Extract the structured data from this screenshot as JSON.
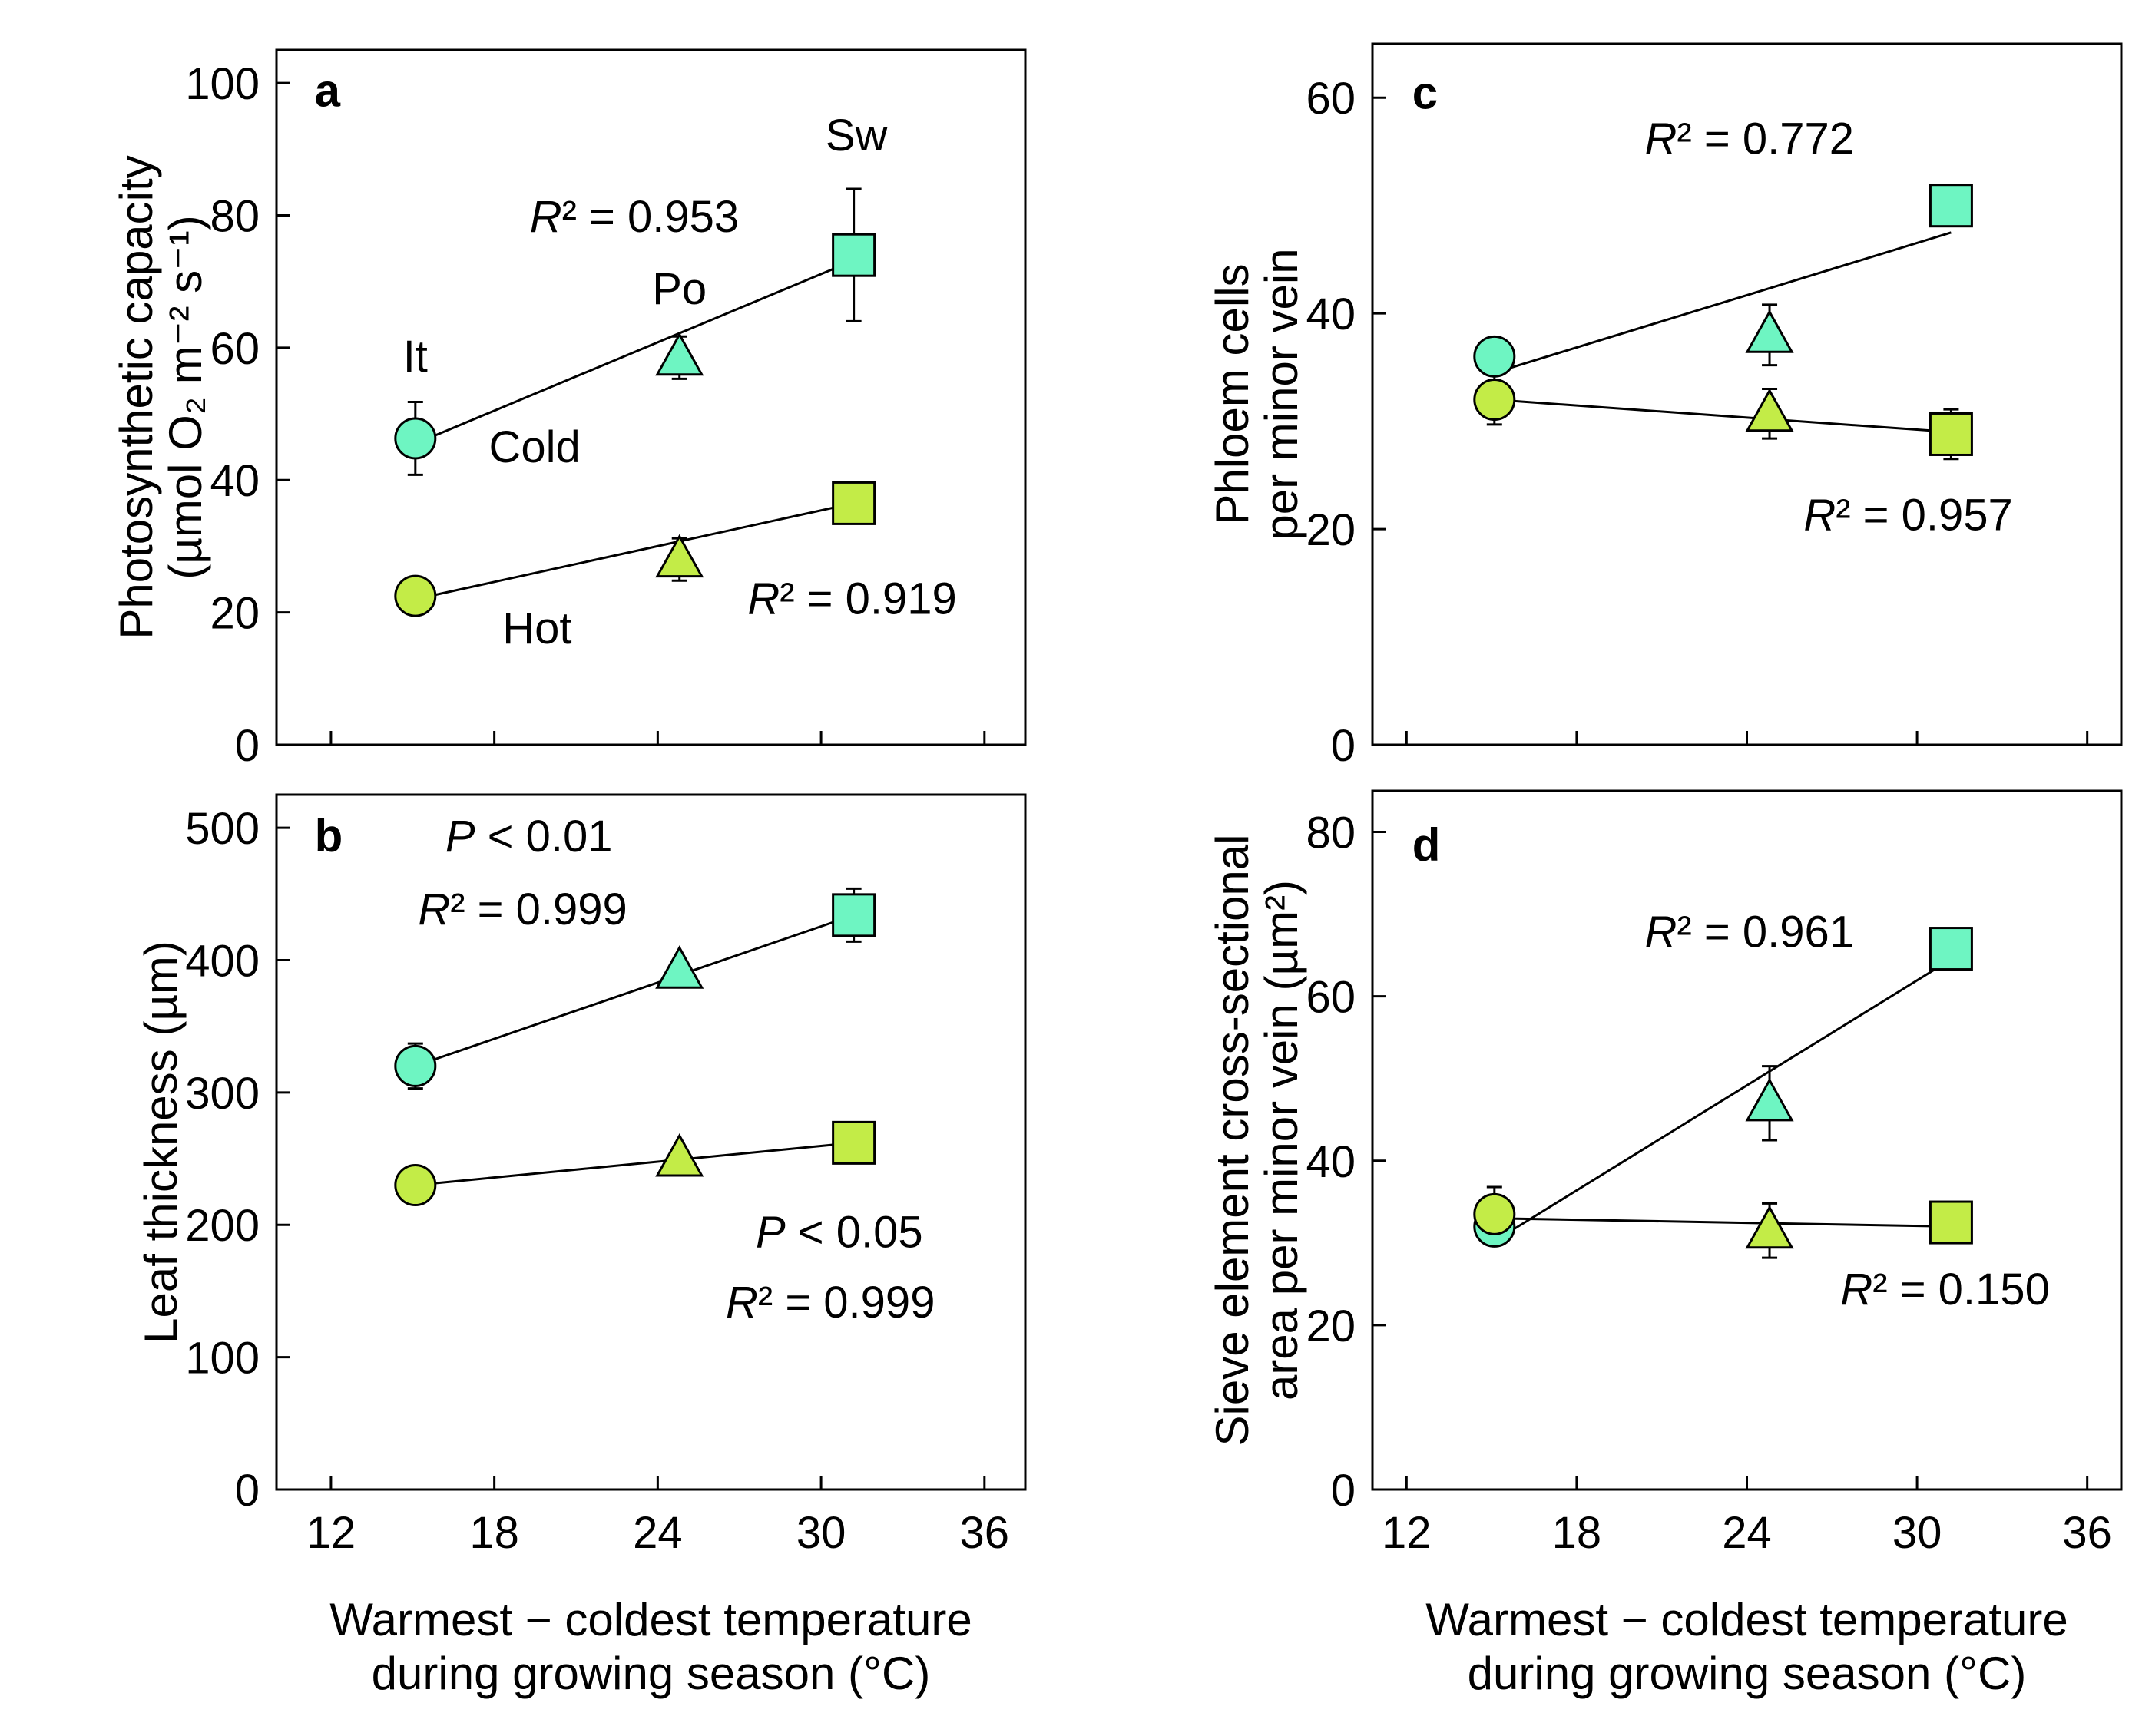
{
  "colors": {
    "cold": "#6ef5c2",
    "hot": "#c3ec47",
    "stroke": "#000000"
  },
  "chart_data": [
    {
      "panel": "a",
      "type": "scatter",
      "ylabel_lines": [
        "Photosynthetic capacity",
        "(µmol O₂ m⁻² s⁻¹)"
      ],
      "xlim": [
        10,
        37.5
      ],
      "ylim": [
        0,
        105
      ],
      "xticks": [
        12,
        18,
        24,
        30,
        36
      ],
      "yticks": [
        0,
        20,
        40,
        60,
        80,
        100
      ],
      "xtick_labels": [],
      "ytick_labels": [
        "0",
        "20",
        "40",
        "60",
        "80",
        "100"
      ],
      "series": [
        {
          "name": "Cold",
          "color_key": "cold",
          "points": [
            {
              "x": 15.1,
              "y": 46.3,
              "err": 5.5,
              "marker": "circle"
            },
            {
              "x": 24.8,
              "y": 58.5,
              "err": 3.2,
              "marker": "triangle"
            },
            {
              "x": 31.2,
              "y": 74.0,
              "err": 10.0,
              "marker": "square"
            }
          ],
          "fit": [
            [
              15.1,
              45.5
            ],
            [
              31.2,
              73.2
            ]
          ]
        },
        {
          "name": "Hot",
          "color_key": "hot",
          "points": [
            {
              "x": 15.1,
              "y": 22.5,
              "err": 0,
              "marker": "circle"
            },
            {
              "x": 24.8,
              "y": 28.0,
              "err": 3.2,
              "marker": "triangle"
            },
            {
              "x": 31.2,
              "y": 36.5,
              "err": 0,
              "marker": "square"
            }
          ],
          "fit": [
            [
              15.1,
              22.0
            ],
            [
              31.2,
              36.5
            ]
          ]
        }
      ],
      "annotations": [
        {
          "text": "a",
          "x": 11.4,
          "y": 96.5,
          "style": "letter"
        },
        {
          "text": "Sw",
          "x": 31.3,
          "y": 89.8,
          "anchor": "middle"
        },
        {
          "text": "R² = 0.953",
          "x": 19.3,
          "y": 77.5,
          "style": "r2"
        },
        {
          "text": "Po",
          "x": 24.8,
          "y": 66.6,
          "anchor": "middle"
        },
        {
          "text": "It",
          "x": 15.1,
          "y": 56.4,
          "anchor": "middle"
        },
        {
          "text": "Cold",
          "x": 17.8,
          "y": 42.7
        },
        {
          "text": "R² = 0.919",
          "x": 27.3,
          "y": 19.8,
          "style": "r2"
        },
        {
          "text": "Hot",
          "x": 18.3,
          "y": 15.3
        }
      ]
    },
    {
      "panel": "b",
      "type": "scatter",
      "ylabel_lines": [
        "Leaf thickness (µm)"
      ],
      "xlim": [
        10,
        37.5
      ],
      "ylim": [
        0,
        525
      ],
      "xticks": [
        12,
        18,
        24,
        30,
        36
      ],
      "yticks": [
        0,
        100,
        200,
        300,
        400,
        500
      ],
      "xtick_labels": [
        "12",
        "18",
        "24",
        "30",
        "36"
      ],
      "ytick_labels": [
        "0",
        "100",
        "200",
        "300",
        "400",
        "500"
      ],
      "xlabel_lines": [
        "Warmest − coldest temperature",
        "during growing season (°C)"
      ],
      "series": [
        {
          "name": "Cold",
          "color_key": "cold",
          "points": [
            {
              "x": 15.1,
              "y": 320,
              "err": 17,
              "marker": "circle"
            },
            {
              "x": 24.8,
              "y": 392,
              "err": 8,
              "marker": "triangle"
            },
            {
              "x": 31.2,
              "y": 434,
              "err": 20,
              "marker": "square"
            }
          ],
          "fit": [
            [
              15.1,
              320
            ],
            [
              31.2,
              434
            ]
          ]
        },
        {
          "name": "Hot",
          "color_key": "hot",
          "points": [
            {
              "x": 15.1,
              "y": 230,
              "err": 0,
              "marker": "circle"
            },
            {
              "x": 24.8,
              "y": 250,
              "err": 0,
              "marker": "triangle"
            },
            {
              "x": 31.2,
              "y": 262,
              "err": 0,
              "marker": "square"
            }
          ],
          "fit": [
            [
              15.1,
              230
            ],
            [
              31.2,
              262
            ]
          ]
        }
      ],
      "annotations": [
        {
          "text": "b",
          "x": 11.4,
          "y": 482,
          "style": "letter"
        },
        {
          "text": "P < 0.01",
          "x": 16.2,
          "y": 482,
          "style": "p"
        },
        {
          "text": "R² = 0.999",
          "x": 15.2,
          "y": 427,
          "style": "r2"
        },
        {
          "text": "P < 0.05",
          "x": 27.6,
          "y": 183,
          "style": "p"
        },
        {
          "text": "R² = 0.999",
          "x": 26.5,
          "y": 130,
          "style": "r2"
        }
      ]
    },
    {
      "panel": "c",
      "type": "scatter",
      "ylabel_lines": [
        "Phloem cells",
        "per minor vein"
      ],
      "xlim": [
        10.8,
        37.2
      ],
      "ylim": [
        0,
        65
      ],
      "xticks": [
        12,
        18,
        24,
        30,
        36
      ],
      "yticks": [
        0,
        20,
        40,
        60
      ],
      "xtick_labels": [],
      "ytick_labels": [
        "0",
        "20",
        "40",
        "60"
      ],
      "series": [
        {
          "name": "Cold",
          "color_key": "cold",
          "points": [
            {
              "x": 15.1,
              "y": 36.0,
              "err": 0,
              "marker": "circle"
            },
            {
              "x": 24.8,
              "y": 38.0,
              "err": 2.8,
              "marker": "triangle"
            },
            {
              "x": 31.2,
              "y": 50.0,
              "err": 0,
              "marker": "square"
            }
          ],
          "fit": [
            [
              15.1,
              34.5
            ],
            [
              31.2,
              47.5
            ]
          ]
        },
        {
          "name": "Hot",
          "color_key": "hot",
          "points": [
            {
              "x": 15.1,
              "y": 32.0,
              "err": 2.3,
              "marker": "circle"
            },
            {
              "x": 24.8,
              "y": 30.7,
              "err": 2.3,
              "marker": "triangle"
            },
            {
              "x": 31.2,
              "y": 28.8,
              "err": 2.3,
              "marker": "square"
            }
          ],
          "fit": [
            [
              15.1,
              32.0
            ],
            [
              31.2,
              29.0
            ]
          ]
        }
      ],
      "annotations": [
        {
          "text": "c",
          "x": 12.2,
          "y": 59.0,
          "style": "letter"
        },
        {
          "text": "R² = 0.772",
          "x": 20.4,
          "y": 54.8,
          "style": "r2"
        },
        {
          "text": "R² = 0.957",
          "x": 26.0,
          "y": 19.9,
          "style": "r2"
        }
      ]
    },
    {
      "panel": "d",
      "type": "scatter",
      "ylabel_lines": [
        "Sieve element cross-sectional",
        "area per minor vein (µm²)"
      ],
      "xlim": [
        10.8,
        37.2
      ],
      "ylim": [
        0,
        85
      ],
      "xticks": [
        12,
        18,
        24,
        30,
        36
      ],
      "yticks": [
        0,
        20,
        40,
        60,
        80
      ],
      "xtick_labels": [
        "12",
        "18",
        "24",
        "30",
        "36"
      ],
      "ytick_labels": [
        "0",
        "20",
        "40",
        "60",
        "80"
      ],
      "xlabel_lines": [
        "Warmest − coldest temperature",
        "during growing season (°C)"
      ],
      "series": [
        {
          "name": "Cold",
          "color_key": "cold",
          "points": [
            {
              "x": 15.1,
              "y": 32.0,
              "err": 2.0,
              "marker": "circle"
            },
            {
              "x": 24.8,
              "y": 47.0,
              "err": 4.5,
              "marker": "triangle"
            },
            {
              "x": 31.2,
              "y": 65.8,
              "err": 0,
              "marker": "square"
            }
          ],
          "fit": [
            [
              15.7,
              31.5
            ],
            [
              31.2,
              64.5
            ]
          ]
        },
        {
          "name": "Hot",
          "color_key": "hot",
          "points": [
            {
              "x": 15.1,
              "y": 33.5,
              "err": 3.3,
              "marker": "circle"
            },
            {
              "x": 24.8,
              "y": 31.5,
              "err": 3.3,
              "marker": "triangle"
            },
            {
              "x": 31.2,
              "y": 32.5,
              "err": 0,
              "marker": "square"
            }
          ],
          "fit": [
            [
              15.1,
              33.0
            ],
            [
              31.2,
              32.0
            ]
          ]
        }
      ],
      "annotations": [
        {
          "text": "d",
          "x": 12.2,
          "y": 76.5,
          "style": "letter"
        },
        {
          "text": "R² = 0.961",
          "x": 20.4,
          "y": 66.0,
          "style": "r2"
        },
        {
          "text": "R² = 0.150",
          "x": 27.3,
          "y": 22.5,
          "style": "r2"
        }
      ]
    }
  ]
}
